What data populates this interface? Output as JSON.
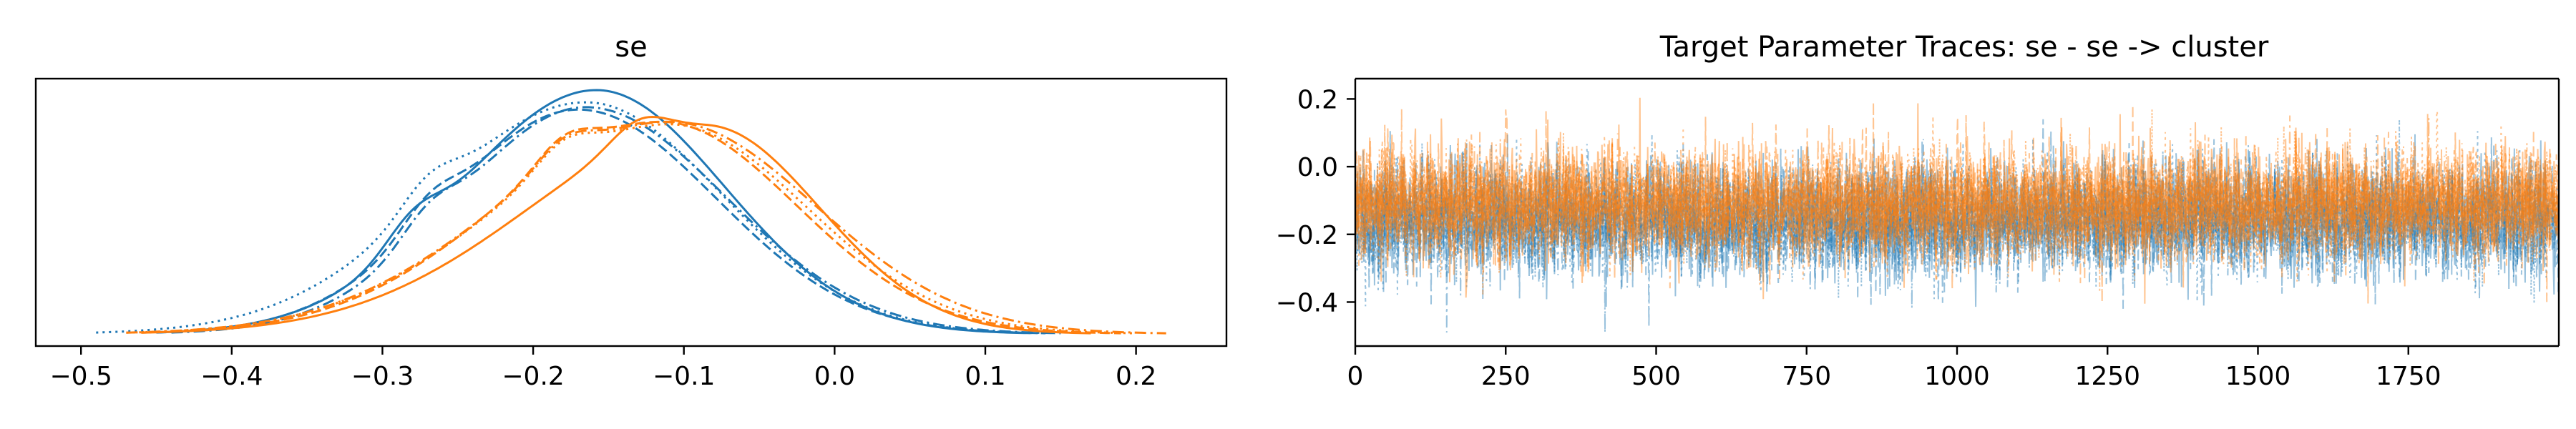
{
  "figure": {
    "left_title": "se",
    "right_title": "Target Parameter Traces: se - se -> cluster"
  },
  "colors": {
    "chain_a": "#1f77b4",
    "chain_b": "#ff7f0e"
  },
  "chart_data": [
    {
      "type": "line",
      "title": "se",
      "xlabel": "",
      "ylabel": "",
      "xlim": [
        -0.53,
        0.26
      ],
      "xticks": [
        "−0.5",
        "−0.4",
        "−0.3",
        "−0.2",
        "−0.1",
        "0.0",
        "0.1",
        "0.2"
      ],
      "xtick_values": [
        -0.5,
        -0.4,
        -0.3,
        -0.2,
        -0.1,
        0.0,
        0.1,
        0.2
      ],
      "yticks": [],
      "description_of_series": "kernel density curves, 4 line styles per group",
      "series": [
        {
          "group": "chain_a",
          "style": "solid",
          "mode": -0.158,
          "peak": 1.0,
          "x_range": [
            -0.45,
            0.13
          ],
          "shoulder": -0.28
        },
        {
          "group": "chain_a",
          "style": "dashed",
          "mode": -0.17,
          "peak": 0.92,
          "x_range": [
            -0.45,
            0.14
          ],
          "shoulder": -0.27
        },
        {
          "group": "chain_a",
          "style": "dotted",
          "mode": -0.165,
          "peak": 0.95,
          "x_range": [
            -0.49,
            0.14
          ],
          "shoulder": -0.27
        },
        {
          "group": "chain_a",
          "style": "dashdot",
          "mode": -0.165,
          "peak": 0.93,
          "x_range": [
            -0.44,
            0.15
          ],
          "shoulder": -0.27
        },
        {
          "group": "chain_b",
          "style": "solid",
          "mode": -0.085,
          "peak": 0.89,
          "x_range": [
            -0.46,
            0.17
          ],
          "shoulder": -0.13
        },
        {
          "group": "chain_b",
          "style": "dashed",
          "mode": -0.115,
          "peak": 0.87,
          "x_range": [
            -0.46,
            0.19
          ],
          "shoulder": -0.18
        },
        {
          "group": "chain_b",
          "style": "dotted",
          "mode": -0.11,
          "peak": 0.86,
          "x_range": [
            -0.47,
            0.2
          ],
          "shoulder": -0.18
        },
        {
          "group": "chain_b",
          "style": "dashdot",
          "mode": -0.11,
          "peak": 0.87,
          "x_range": [
            -0.47,
            0.22
          ],
          "shoulder": -0.18
        }
      ],
      "grid": false
    },
    {
      "type": "line",
      "title": "Target Parameter Traces: se - se -> cluster",
      "xlabel": "",
      "ylabel": "",
      "xlim": [
        0,
        2000
      ],
      "ylim": [
        -0.53,
        0.26
      ],
      "xticks": [
        "0",
        "250",
        "500",
        "750",
        "1000",
        "1250",
        "1500",
        "1750"
      ],
      "xtick_values": [
        0,
        250,
        500,
        750,
        1000,
        1250,
        1500,
        1750
      ],
      "yticks": [
        "−0.4",
        "−0.2",
        "0.0",
        "0.2"
      ],
      "ytick_values": [
        -0.4,
        -0.2,
        0.0,
        0.2
      ],
      "series": [
        {
          "group": "chain_a",
          "draws": 2000,
          "mean": -0.158,
          "sd": 0.085,
          "min": -0.49,
          "max": 0.14
        },
        {
          "group": "chain_b",
          "draws": 2000,
          "mean": -0.11,
          "sd": 0.085,
          "min": -0.47,
          "max": 0.22
        }
      ],
      "grid": false
    }
  ]
}
